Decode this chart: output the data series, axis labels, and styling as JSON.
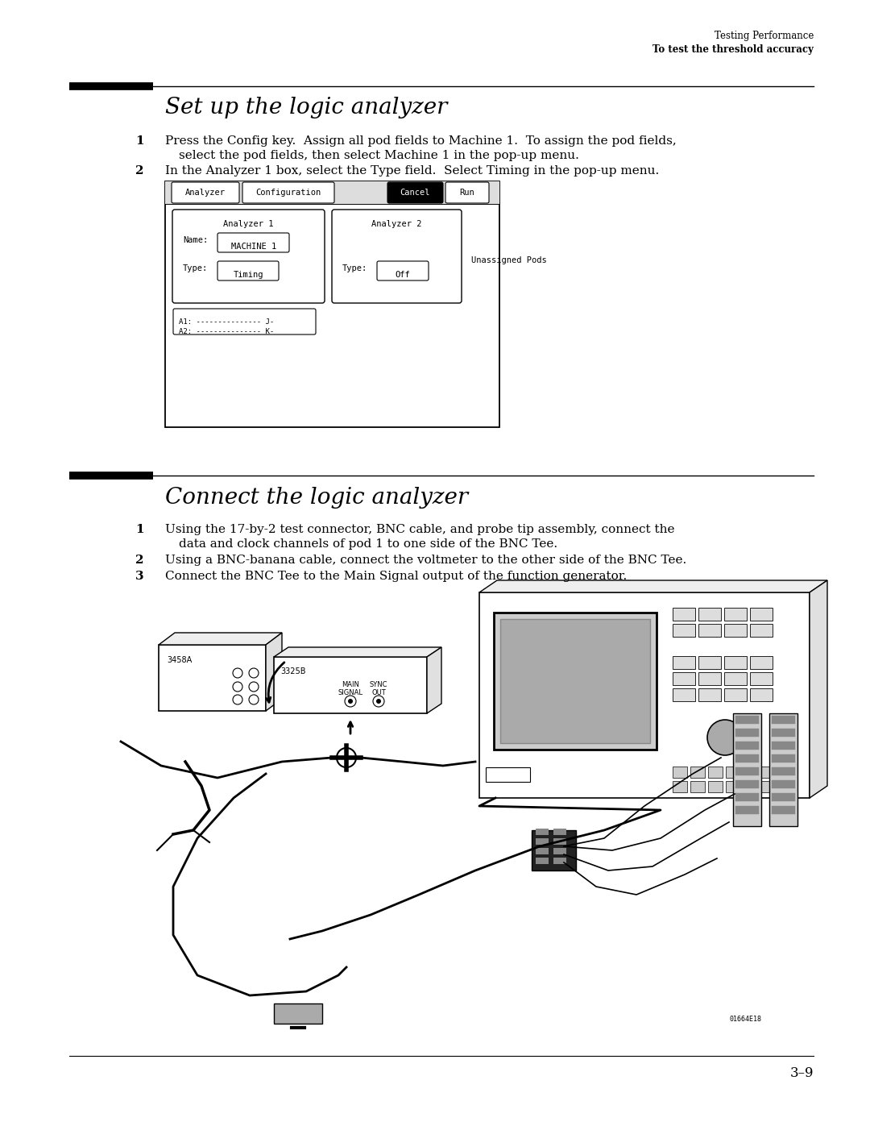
{
  "bg_color": "#ffffff",
  "header_line1": "Testing Performance",
  "header_line2": "To test the threshold accuracy",
  "section1_title": "Set up the logic analyzer",
  "section2_title": "Connect the logic analyzer",
  "footer_text": "3–9",
  "footer_note": "01664E18"
}
